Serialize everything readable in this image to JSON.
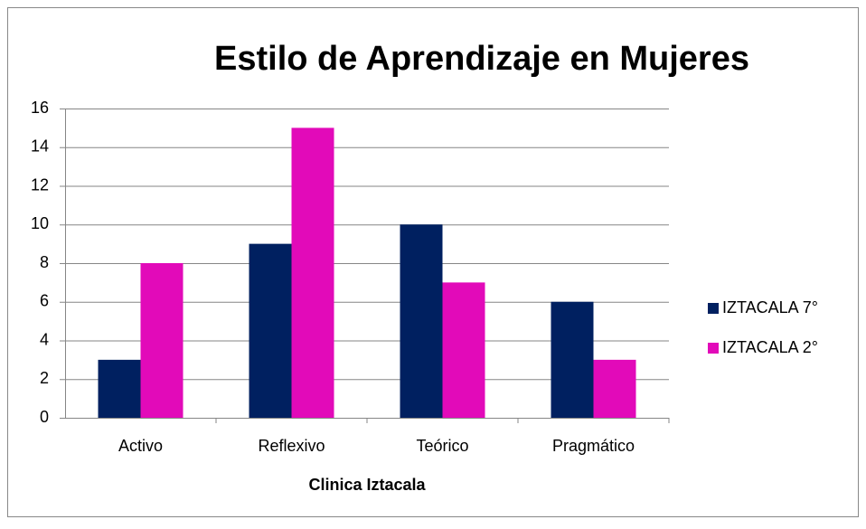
{
  "chart_data": {
    "type": "bar",
    "title": "Estilo de Aprendizaje en Mujeres",
    "x_label": "Clinica Iztacala",
    "categories": [
      "Activo",
      "Reflexivo",
      "Teórico",
      "Pragmático"
    ],
    "series": [
      {
        "name": "IZTACALA 7°",
        "color": "#002060",
        "values": [
          3,
          9,
          10,
          6
        ]
      },
      {
        "name": "IZTACALA 2°",
        "color": "#e20ab9",
        "values": [
          8,
          15,
          7,
          3
        ]
      }
    ],
    "ylim": [
      0,
      16
    ],
    "yticks": [
      0,
      2,
      4,
      6,
      8,
      10,
      12,
      14,
      16
    ],
    "grid": true,
    "legend": "right"
  }
}
